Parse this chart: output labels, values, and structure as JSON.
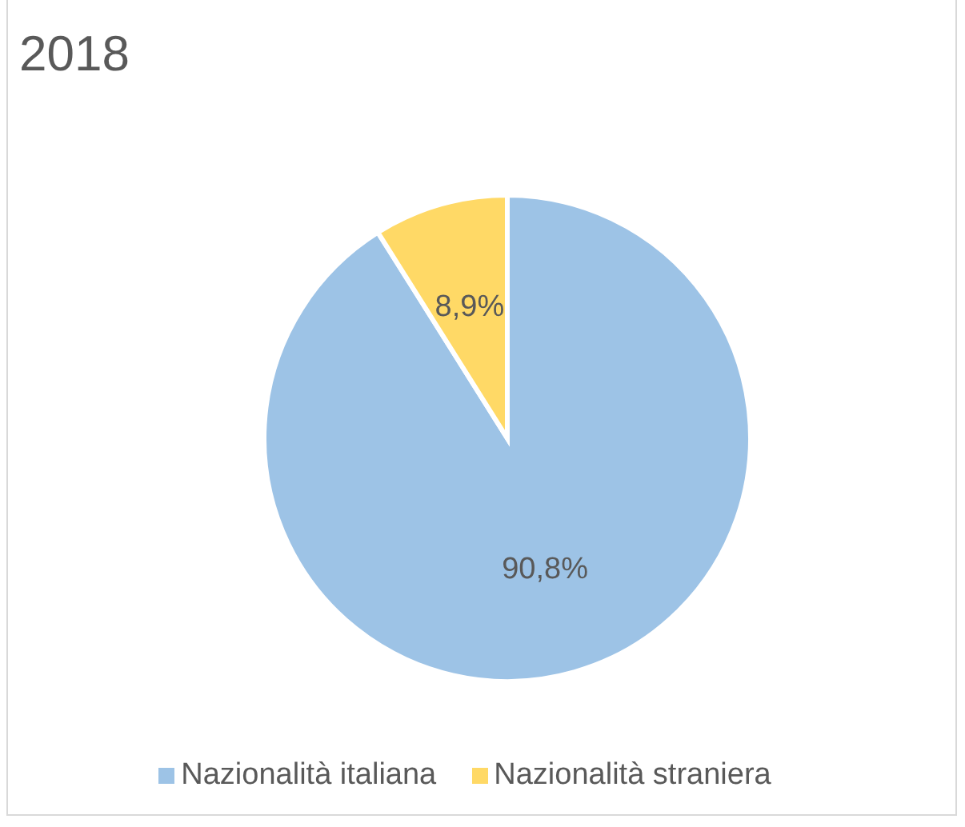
{
  "chart_data": {
    "type": "pie",
    "title": "2018",
    "categories": [
      "Nazionalità italiana",
      "Nazionalità straniera"
    ],
    "values": [
      90.8,
      8.9
    ],
    "colors": [
      "#9dc3e6",
      "#ffd966"
    ],
    "value_labels": [
      "90,8%",
      "8,9%"
    ],
    "legend": "bottom"
  }
}
